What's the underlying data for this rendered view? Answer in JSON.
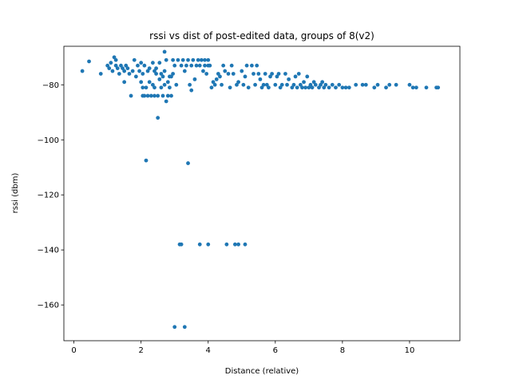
{
  "chart_data": {
    "type": "scatter",
    "title": "rssi vs dist of post-edited data, groups of 8(v2)",
    "xlabel": "Distance (relative)",
    "ylabel": "rssi (dbm)",
    "xlim": [
      -0.3,
      11.5
    ],
    "ylim": [
      -173,
      -66
    ],
    "xticks": [
      0,
      2,
      4,
      6,
      8,
      10
    ],
    "yticks": [
      -160,
      -140,
      -120,
      -100,
      -80
    ],
    "ytick_labels": [
      "−160",
      "−140",
      "−120",
      "−100",
      "−80"
    ],
    "grid": false,
    "point_color": "#1f77b4",
    "series": [
      {
        "points": [
          [
            0.25,
            -75
          ],
          [
            0.45,
            -71.5
          ],
          [
            0.8,
            -76
          ],
          [
            1.0,
            -73
          ],
          [
            1.05,
            -74
          ],
          [
            1.1,
            -72
          ],
          [
            1.15,
            -75
          ],
          [
            1.2,
            -70
          ],
          [
            1.25,
            -71
          ],
          [
            1.25,
            -73
          ],
          [
            1.3,
            -74
          ],
          [
            1.35,
            -76
          ],
          [
            1.4,
            -73
          ],
          [
            1.45,
            -74
          ],
          [
            1.5,
            -75
          ],
          [
            1.5,
            -79
          ],
          [
            1.55,
            -73
          ],
          [
            1.6,
            -74
          ],
          [
            1.65,
            -76
          ],
          [
            1.7,
            -84
          ],
          [
            1.75,
            -75
          ],
          [
            1.8,
            -71
          ],
          [
            1.85,
            -77
          ],
          [
            1.9,
            -73
          ],
          [
            1.95,
            -75
          ],
          [
            2.0,
            -72
          ],
          [
            2.0,
            -79
          ],
          [
            2.05,
            -76
          ],
          [
            2.05,
            -81
          ],
          [
            2.05,
            -84
          ],
          [
            2.1,
            -73
          ],
          [
            2.1,
            -84
          ],
          [
            2.15,
            -107.5
          ],
          [
            2.15,
            -81
          ],
          [
            2.2,
            -75
          ],
          [
            2.2,
            -84
          ],
          [
            2.25,
            -74
          ],
          [
            2.25,
            -79
          ],
          [
            2.3,
            -84
          ],
          [
            2.35,
            -72
          ],
          [
            2.35,
            -80
          ],
          [
            2.4,
            -75
          ],
          [
            2.4,
            -81
          ],
          [
            2.4,
            -84
          ],
          [
            2.45,
            -76
          ],
          [
            2.45,
            -74
          ],
          [
            2.5,
            -92
          ],
          [
            2.5,
            -84
          ],
          [
            2.55,
            -72
          ],
          [
            2.55,
            -78
          ],
          [
            2.6,
            -76
          ],
          [
            2.6,
            -81
          ],
          [
            2.65,
            -77
          ],
          [
            2.65,
            -84
          ],
          [
            2.7,
            -68
          ],
          [
            2.7,
            -75
          ],
          [
            2.7,
            -80
          ],
          [
            2.75,
            -71
          ],
          [
            2.75,
            -86
          ],
          [
            2.8,
            -79
          ],
          [
            2.8,
            -84
          ],
          [
            2.85,
            -77
          ],
          [
            2.85,
            -81
          ],
          [
            2.9,
            -77
          ],
          [
            2.9,
            -84
          ],
          [
            2.95,
            -71
          ],
          [
            2.95,
            -76
          ],
          [
            3.0,
            -73
          ],
          [
            3.0,
            -168
          ],
          [
            3.05,
            -80
          ],
          [
            3.1,
            -71
          ],
          [
            3.15,
            -138
          ],
          [
            3.2,
            -73
          ],
          [
            3.2,
            -138
          ],
          [
            3.25,
            -71
          ],
          [
            3.3,
            -168
          ],
          [
            3.3,
            -75
          ],
          [
            3.35,
            -73
          ],
          [
            3.4,
            -108.5
          ],
          [
            3.4,
            -71
          ],
          [
            3.45,
            -80
          ],
          [
            3.5,
            -73
          ],
          [
            3.5,
            -82
          ],
          [
            3.55,
            -71
          ],
          [
            3.6,
            -78
          ],
          [
            3.65,
            -73
          ],
          [
            3.7,
            -71
          ],
          [
            3.75,
            -73
          ],
          [
            3.75,
            -138
          ],
          [
            3.8,
            -71
          ],
          [
            3.85,
            -75
          ],
          [
            3.9,
            -73
          ],
          [
            3.9,
            -71
          ],
          [
            3.95,
            -76
          ],
          [
            4.0,
            -73
          ],
          [
            4.0,
            -71
          ],
          [
            4.0,
            -138
          ],
          [
            4.05,
            -73
          ],
          [
            4.1,
            -81
          ],
          [
            4.15,
            -79
          ],
          [
            4.2,
            -80
          ],
          [
            4.25,
            -78
          ],
          [
            4.3,
            -76
          ],
          [
            4.35,
            -77
          ],
          [
            4.4,
            -80
          ],
          [
            4.45,
            -73
          ],
          [
            4.5,
            -75
          ],
          [
            4.55,
            -138
          ],
          [
            4.6,
            -76
          ],
          [
            4.65,
            -81
          ],
          [
            4.7,
            -73
          ],
          [
            4.75,
            -76
          ],
          [
            4.8,
            -138
          ],
          [
            4.85,
            -80
          ],
          [
            4.9,
            -138
          ],
          [
            4.9,
            -79
          ],
          [
            5.0,
            -75
          ],
          [
            5.05,
            -80
          ],
          [
            5.1,
            -138
          ],
          [
            5.1,
            -77
          ],
          [
            5.15,
            -73
          ],
          [
            5.2,
            -81
          ],
          [
            5.3,
            -73
          ],
          [
            5.35,
            -76
          ],
          [
            5.4,
            -80
          ],
          [
            5.45,
            -73
          ],
          [
            5.5,
            -76
          ],
          [
            5.55,
            -78
          ],
          [
            5.6,
            -81
          ],
          [
            5.65,
            -80
          ],
          [
            5.7,
            -76
          ],
          [
            5.75,
            -80
          ],
          [
            5.8,
            -81
          ],
          [
            5.85,
            -77
          ],
          [
            5.9,
            -76
          ],
          [
            6.0,
            -80
          ],
          [
            6.05,
            -77
          ],
          [
            6.1,
            -76
          ],
          [
            6.15,
            -81
          ],
          [
            6.2,
            -80
          ],
          [
            6.3,
            -76
          ],
          [
            6.35,
            -80
          ],
          [
            6.4,
            -78
          ],
          [
            6.5,
            -81
          ],
          [
            6.55,
            -80
          ],
          [
            6.6,
            -77
          ],
          [
            6.65,
            -81
          ],
          [
            6.7,
            -76
          ],
          [
            6.75,
            -80
          ],
          [
            6.8,
            -81
          ],
          [
            6.85,
            -79
          ],
          [
            6.9,
            -81
          ],
          [
            6.95,
            -77
          ],
          [
            7.0,
            -81
          ],
          [
            7.05,
            -80
          ],
          [
            7.1,
            -81
          ],
          [
            7.15,
            -79
          ],
          [
            7.2,
            -80
          ],
          [
            7.3,
            -81
          ],
          [
            7.35,
            -80
          ],
          [
            7.4,
            -79
          ],
          [
            7.45,
            -81
          ],
          [
            7.5,
            -80
          ],
          [
            7.6,
            -81
          ],
          [
            7.7,
            -80
          ],
          [
            7.8,
            -81
          ],
          [
            7.9,
            -80
          ],
          [
            8.0,
            -81
          ],
          [
            8.1,
            -81
          ],
          [
            8.2,
            -81
          ],
          [
            8.4,
            -80
          ],
          [
            8.6,
            -80
          ],
          [
            8.7,
            -80
          ],
          [
            8.95,
            -81
          ],
          [
            9.05,
            -80
          ],
          [
            9.3,
            -81
          ],
          [
            9.4,
            -80
          ],
          [
            9.6,
            -80
          ],
          [
            10.0,
            -80
          ],
          [
            10.1,
            -81
          ],
          [
            10.2,
            -81
          ],
          [
            10.5,
            -81
          ],
          [
            10.8,
            -81
          ],
          [
            10.85,
            -81
          ]
        ]
      }
    ]
  }
}
